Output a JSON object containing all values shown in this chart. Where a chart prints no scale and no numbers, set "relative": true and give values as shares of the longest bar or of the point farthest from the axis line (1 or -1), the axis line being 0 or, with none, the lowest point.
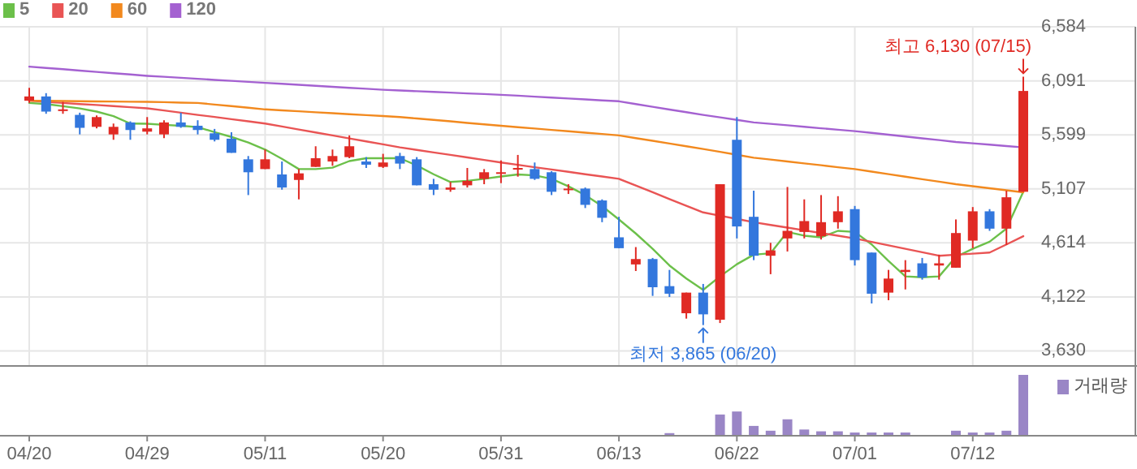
{
  "chart_data": [
    {
      "type": "candlestick",
      "categories": [
        null,
        null,
        null,
        null,
        null,
        null,
        null,
        null,
        null,
        null,
        null,
        null,
        null,
        null,
        null,
        null,
        null,
        null,
        null,
        null,
        null,
        null,
        null,
        null,
        null,
        null,
        null,
        null,
        null,
        null,
        null,
        null,
        null,
        null,
        null,
        null,
        null,
        null,
        null,
        null,
        null,
        null,
        null,
        null,
        null,
        null,
        null,
        null,
        null,
        null,
        null,
        null,
        null,
        null,
        null,
        null,
        null,
        null,
        null,
        null
      ],
      "ohlc": [
        [
          5910,
          6028,
          5890,
          5949
        ],
        [
          5949,
          5979,
          5791,
          5811
        ],
        [
          5821,
          5900,
          5791,
          5831
        ],
        [
          5781,
          5801,
          5603,
          5663
        ],
        [
          5672,
          5776,
          5658,
          5761
        ],
        [
          5603,
          5702,
          5554,
          5672
        ],
        [
          5712,
          5722,
          5554,
          5643
        ],
        [
          5628,
          5761,
          5603,
          5658
        ],
        [
          5603,
          5732,
          5569,
          5712
        ],
        [
          5712,
          5801,
          5663,
          5672
        ],
        [
          5682,
          5732,
          5603,
          5643
        ],
        [
          5613,
          5653,
          5539,
          5554
        ],
        [
          5564,
          5623,
          5435,
          5435
        ],
        [
          5376,
          5406,
          5050,
          5258
        ],
        [
          5287,
          5465,
          5287,
          5376
        ],
        [
          5238,
          5356,
          5099,
          5119
        ],
        [
          5188,
          5287,
          5011,
          5248
        ],
        [
          5307,
          5495,
          5307,
          5386
        ],
        [
          5356,
          5465,
          5317,
          5406
        ],
        [
          5396,
          5594,
          5386,
          5495
        ],
        [
          5356,
          5396,
          5297,
          5327
        ],
        [
          5307,
          5426,
          5297,
          5347
        ],
        [
          5406,
          5435,
          5287,
          5337
        ],
        [
          5376,
          5396,
          5139,
          5139
        ],
        [
          5149,
          5198,
          5050,
          5099
        ],
        [
          5099,
          5169,
          5080,
          5119
        ],
        [
          5139,
          5297,
          5119,
          5179
        ],
        [
          5198,
          5287,
          5149,
          5258
        ],
        [
          5248,
          5366,
          5159,
          5258
        ],
        [
          5287,
          5416,
          5218,
          5297
        ],
        [
          5287,
          5347,
          5188,
          5198
        ],
        [
          5258,
          5268,
          5050,
          5080
        ],
        [
          5099,
          5149,
          5060,
          5109
        ],
        [
          5109,
          5119,
          4932,
          4961
        ],
        [
          5001,
          5011,
          4803,
          4843
        ],
        [
          4665,
          4852,
          4566,
          4566
        ],
        [
          4418,
          4576,
          4358,
          4467
        ],
        [
          4467,
          4477,
          4131,
          4210
        ],
        [
          4220,
          4368,
          4121,
          4151
        ],
        [
          3973,
          4161,
          3924,
          4161
        ],
        [
          4161,
          4240,
          3865,
          3963
        ],
        [
          3914,
          5149,
          3884,
          5149
        ],
        [
          5554,
          5761,
          4655,
          4764
        ],
        [
          4852,
          5090,
          4457,
          4497
        ],
        [
          4497,
          4615,
          4329,
          4546
        ],
        [
          4655,
          5124,
          4536,
          4724
        ],
        [
          4714,
          5011,
          4655,
          4813
        ],
        [
          4675,
          5050,
          4645,
          4803
        ],
        [
          4803,
          5040,
          4744,
          4902
        ],
        [
          4922,
          4951,
          4408,
          4457
        ],
        [
          4526,
          4526,
          4062,
          4151
        ],
        [
          4161,
          4368,
          4092,
          4289
        ],
        [
          4349,
          4457,
          4190,
          4368
        ],
        [
          4428,
          4477,
          4279,
          4299
        ],
        [
          4408,
          4507,
          4279,
          4428
        ],
        [
          4388,
          4828,
          4388,
          4704
        ],
        [
          4635,
          4941,
          4566,
          4902
        ],
        [
          4902,
          4922,
          4724,
          4744
        ],
        [
          4744,
          5090,
          4596,
          5030
        ],
        [
          5080,
          6130,
          5080,
          5999
        ]
      ],
      "series": [
        {
          "name": "5",
          "type": "line",
          "color": "#6cc04a",
          "values": [
            5890,
            5880,
            5860,
            5840,
            5811,
            5770,
            5702,
            5700,
            5690,
            5682,
            5670,
            5623,
            5580,
            5530,
            5465,
            5380,
            5287,
            5287,
            5300,
            5360,
            5386,
            5386,
            5386,
            5320,
            5240,
            5169,
            5180,
            5198,
            5220,
            5238,
            5230,
            5198,
            5130,
            5050,
            4950,
            4828,
            4700,
            4560,
            4408,
            4290,
            4186,
            4309,
            4420,
            4507,
            4520,
            4714,
            4680,
            4665,
            4724,
            4714,
            4600,
            4450,
            4309,
            4300,
            4309,
            4487,
            4560,
            4625,
            4744,
            5080
          ]
        },
        {
          "name": "20",
          "type": "line",
          "color": "#e95454",
          "values": [
            5910,
            5900,
            5890,
            5880,
            5871,
            5861,
            5851,
            5841,
            5821,
            5801,
            5781,
            5762,
            5742,
            5722,
            5702,
            5675,
            5648,
            5621,
            5594,
            5566,
            5539,
            5512,
            5485,
            5462,
            5439,
            5416,
            5393,
            5370,
            5347,
            5326,
            5304,
            5283,
            5262,
            5240,
            5219,
            5198,
            5137,
            5076,
            5014,
            4953,
            4892,
            4862,
            4833,
            4803,
            4778,
            4754,
            4729,
            4704,
            4680,
            4655,
            4623,
            4592,
            4560,
            4529,
            4497,
            4507,
            4516,
            4526,
            4600,
            4675
          ]
        },
        {
          "name": "60",
          "type": "line",
          "color": "#f2891e",
          "values": [
            5910,
            5909,
            5907,
            5906,
            5904,
            5903,
            5901,
            5900,
            5897,
            5893,
            5890,
            5875,
            5861,
            5846,
            5831,
            5822,
            5814,
            5805,
            5796,
            5787,
            5779,
            5770,
            5761,
            5748,
            5735,
            5722,
            5708,
            5695,
            5682,
            5669,
            5657,
            5644,
            5632,
            5619,
            5607,
            5594,
            5569,
            5545,
            5520,
            5495,
            5470,
            5444,
            5417,
            5391,
            5374,
            5356,
            5339,
            5322,
            5304,
            5287,
            5264,
            5241,
            5218,
            5195,
            5172,
            5149,
            5131,
            5112,
            5094,
            5075
          ]
        },
        {
          "name": "120",
          "type": "line",
          "color": "#a461d1",
          "values": [
            6221,
            6209,
            6197,
            6185,
            6173,
            6161,
            6149,
            6137,
            6128,
            6119,
            6110,
            6100,
            6091,
            6082,
            6073,
            6064,
            6055,
            6046,
            6037,
            6028,
            6019,
            6010,
            6003,
            5997,
            5990,
            5984,
            5977,
            5971,
            5964,
            5956,
            5947,
            5939,
            5930,
            5922,
            5913,
            5905,
            5880,
            5855,
            5830,
            5806,
            5781,
            5758,
            5735,
            5712,
            5699,
            5686,
            5673,
            5659,
            5646,
            5633,
            5617,
            5600,
            5584,
            5567,
            5551,
            5534,
            5522,
            5510,
            5497,
            5485
          ]
        }
      ],
      "ylim": [
        3500,
        6584
      ],
      "yticks": [
        {
          "value": 3630,
          "label": "3,630"
        },
        {
          "value": 4122,
          "label": "4,122"
        },
        {
          "value": 4614,
          "label": "4,614"
        },
        {
          "value": 5107,
          "label": "5,107"
        },
        {
          "value": 5599,
          "label": "5,599"
        },
        {
          "value": 6091,
          "label": "6,091"
        },
        {
          "value": 6584,
          "label": "6,584"
        }
      ],
      "grid": true,
      "legend": "top left",
      "tick_labels": "y",
      "annotations": [
        "최고 6,130 (07/15)",
        "최저 3,865 (06/20)"
      ]
    },
    {
      "type": "bar",
      "relative": true,
      "categories": [
        "04/20",
        null,
        null,
        null,
        null,
        null,
        null,
        "04/29",
        null,
        null,
        null,
        null,
        null,
        null,
        "05/11",
        null,
        null,
        null,
        null,
        null,
        null,
        "05/20",
        null,
        null,
        null,
        null,
        null,
        null,
        "05/31",
        null,
        null,
        null,
        null,
        null,
        null,
        "06/13",
        null,
        null,
        null,
        null,
        null,
        null,
        "06/22",
        null,
        null,
        null,
        null,
        null,
        null,
        "07/01",
        null,
        null,
        null,
        null,
        null,
        null,
        "07/12",
        null,
        null,
        null
      ],
      "series": [
        {
          "name": "거래량",
          "color": "#9a86c6",
          "values": [
            null,
            null,
            null,
            null,
            null,
            null,
            null,
            null,
            null,
            null,
            null,
            null,
            null,
            null,
            null,
            null,
            null,
            null,
            null,
            null,
            null,
            null,
            null,
            null,
            null,
            null,
            null,
            null,
            null,
            null,
            null,
            null,
            null,
            null,
            null,
            null,
            null,
            null,
            0.03,
            null,
            null,
            0.34,
            0.39,
            0.15,
            0.07,
            0.26,
            0.09,
            0.06,
            0.06,
            0.04,
            0.04,
            0.04,
            0.04,
            null,
            null,
            0.07,
            0.04,
            0.04,
            0.07,
            1
          ]
        }
      ],
      "legend": "top right",
      "tick_labels": "x"
    }
  ]
}
